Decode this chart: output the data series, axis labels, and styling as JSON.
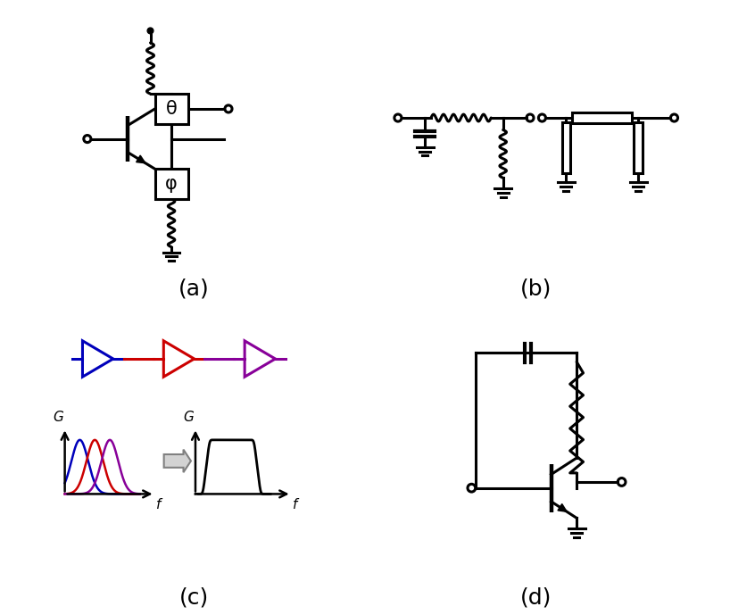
{
  "background": "#ffffff",
  "label_a": "(a)",
  "label_b": "(b)",
  "label_c": "(c)",
  "label_d": "(d)",
  "label_fontsize": 18,
  "title_color": "#000000",
  "lw": 2.2
}
